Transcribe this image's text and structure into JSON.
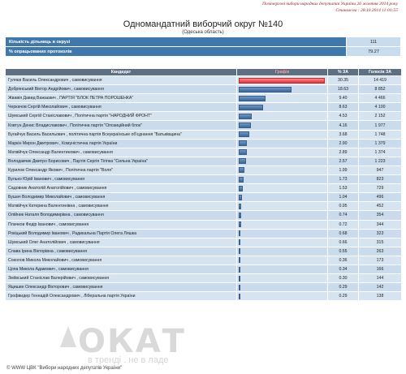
{
  "header": {
    "election": "Позачергові вибори народних депутатів України 26 жовтня 2014 року",
    "status": "Станом на : 28.10.2014 11:01:55"
  },
  "title": "Одномандатний виборчий округ №140",
  "subtitle": "(Одеська область)",
  "summary": [
    {
      "label": "Кількість дільниць в окрузі",
      "value": "111"
    },
    {
      "label": "% опрацьованих протоколів",
      "value": "79.27"
    }
  ],
  "columns": [
    "Кандидат",
    "Графік",
    "% ЗА",
    "Голосів ЗА"
  ],
  "rows": [
    {
      "candidate": "Гуляєв Василь Олександрович , самовисування",
      "pct": "30.35",
      "votes": "14 419",
      "share": 30.35
    },
    {
      "candidate": "Добрянський Віктор Андрійович , самовисування",
      "pct": "18.63",
      "votes": "8 852",
      "share": 18.63
    },
    {
      "candidate": "Жвавія Давид Важаєвич , ПАРТІЯ \"БЛОК ПЕТРА ПОРОШЕНКА\"",
      "pct": "9.40",
      "votes": "4 466",
      "share": 9.4
    },
    {
      "candidate": "Черкачов Сергій Миколайович , самовисування",
      "pct": "8.63",
      "votes": "4 100",
      "share": 8.63
    },
    {
      "candidate": "Шумський Сергій Станіславович , Політична партія \"НАРОДНИЙ ФРОНТ\"",
      "pct": "4.53",
      "votes": "2 152",
      "share": 4.53
    },
    {
      "candidate": "Ковтун Денис Владиславович , Політична партія \"Опозиційний блок\"",
      "pct": "4.16",
      "votes": "1 977",
      "share": 4.16
    },
    {
      "candidate": "Бугайчук Василь Васильович , політична партія Всеукраїнське об'єднання \"Батьківщина\"",
      "pct": "3.68",
      "votes": "1 748",
      "share": 3.68
    },
    {
      "candidate": "Маркін Мирон Дмитрович , Комуністична партія України",
      "pct": "2.90",
      "votes": "1 379",
      "share": 2.9
    },
    {
      "candidate": "Матвійчук Олександр Валентинович , самовисування",
      "pct": "2.89",
      "votes": "1 374",
      "share": 2.89
    },
    {
      "candidate": "Володавчик Дмитро Борисович , Партія Сергія Тігіпка \"Сильна Україна\"",
      "pct": "2.57",
      "votes": "1 223",
      "share": 2.57
    },
    {
      "candidate": "Курилов Олександр Якович , Політична партія \"Воля\"",
      "pct": "1.99",
      "votes": "947",
      "share": 1.99
    },
    {
      "candidate": "Булько Юрій Іванович , самовисування",
      "pct": "1.73",
      "votes": "823",
      "share": 1.73
    },
    {
      "candidate": "Садовник Анатолій Анатолійович , самовисування",
      "pct": "1.53",
      "votes": "729",
      "share": 1.53
    },
    {
      "candidate": "Бушач Володимир Миколайович , самовисування",
      "pct": "1.04",
      "votes": "496",
      "share": 1.04
    },
    {
      "candidate": "Матвійчук Катерина Валентинівна , самовисування",
      "pct": "0.95",
      "votes": "452",
      "share": 0.95
    },
    {
      "candidate": "Олійник Наталя Володимирівна , самовисування",
      "pct": "0.74",
      "votes": "354",
      "share": 0.74
    },
    {
      "candidate": "Плачков Федір Іванович , самовисування",
      "pct": "0.72",
      "votes": "344",
      "share": 0.72
    },
    {
      "candidate": "Рокіцький Володимир Іванович , Радикальна Партія Олега Ляшка",
      "pct": "0.68",
      "votes": "323",
      "share": 0.68
    },
    {
      "candidate": "Шумський Олег Анатолійович , самовисування",
      "pct": "0.66",
      "votes": "315",
      "share": 0.66
    },
    {
      "candidate": "Слава Ірина Вікторівна , самовисування",
      "pct": "0.55",
      "votes": "263",
      "share": 0.55
    },
    {
      "candidate": "Соколов Микола Миколайович , самовисування",
      "pct": "0.36",
      "votes": "173",
      "share": 0.36
    },
    {
      "candidate": "Цопа Микола Адамович , самовисування",
      "pct": "0.34",
      "votes": "166",
      "share": 0.34
    },
    {
      "candidate": "Зміївський Станіслав Валерійович , самовисування",
      "pct": "0.30",
      "votes": "144",
      "share": 0.3
    },
    {
      "candidate": "Яцишин Олександр Вікторович , самовисування",
      "pct": "0.29",
      "votes": "142",
      "share": 0.29
    },
    {
      "candidate": "Грофвидер Геннадій Олександрович , Ліберальна партія України",
      "pct": "0.29",
      "votes": "138",
      "share": 0.29
    }
  ],
  "footer": "© WWW ЦВК \"Вибори народних депутатів України\"",
  "watermark": {
    "text": "ОКАТ",
    "tagline": "в тренді . не в ладе"
  },
  "colors": {
    "header_bg": "#5c6f85",
    "summary_bg": "#3f78ab",
    "lead_bar": "#e0323a",
    "bar": "#3c6698"
  }
}
